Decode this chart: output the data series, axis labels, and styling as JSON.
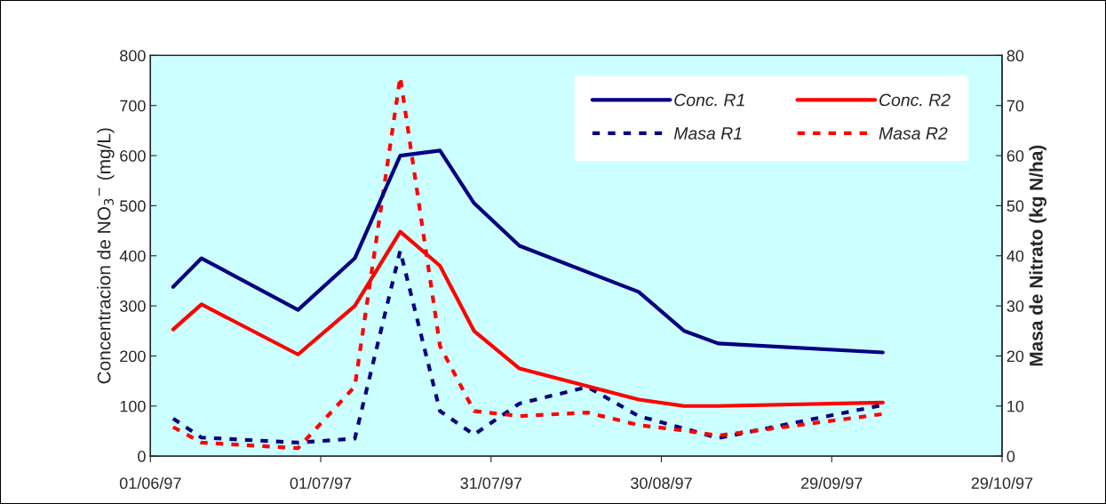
{
  "chart_data": {
    "type": "line",
    "xlabel": null,
    "ylabel": "Concentracion de NO$_{3}$$^{−}$ (mg/L)",
    "y2label": "Masa de Nitrato (kg N/ha)",
    "x": [
      "1997-06-05",
      "1997-06-10",
      "1997-06-27",
      "1997-07-07",
      "1997-07-15",
      "1997-07-22",
      "1997-07-28",
      "1997-08-05",
      "1997-08-17",
      "1997-08-26",
      "1997-09-03",
      "1997-09-09",
      "1997-10-08"
    ],
    "series": [
      {
        "name": "Conc. R1",
        "color": "#000080",
        "line_style": "solid",
        "values": [
          338,
          395,
          292,
          395,
          600,
          610,
          505,
          420,
          null,
          328,
          250,
          225,
          207
        ]
      },
      {
        "name": "Conc. R2",
        "color": "#ff0000",
        "line_style": "solid",
        "values": [
          253,
          303,
          203,
          300,
          448,
          380,
          250,
          175,
          null,
          113,
          100,
          100,
          107
        ]
      },
      {
        "name": "Masa R1",
        "color": "#000080",
        "line_style": "dashed",
        "axis": "y2",
        "values": [
          7.5,
          3.7,
          2.7,
          3.5,
          41,
          9,
          4.3,
          10.5,
          13.8,
          8,
          5.5,
          3.6,
          10.2
        ]
      },
      {
        "name": "Masa R2",
        "color": "#ff0000",
        "line_style": "dashed",
        "axis": "y2",
        "values": [
          5.8,
          2.7,
          1.6,
          13.9,
          75.7,
          22,
          9,
          8,
          8.7,
          6.2,
          5.1,
          4.1,
          8.4
        ]
      }
    ],
    "xlim": [
      "1997-06-01",
      "1997-10-29"
    ],
    "xticks": [
      {
        "value": "1997-06-01",
        "label": "01/06/97"
      },
      {
        "value": "1997-07-01",
        "label": "01/07/97"
      },
      {
        "value": "1997-07-31",
        "label": "31/07/97"
      },
      {
        "value": "1997-08-30",
        "label": "30/08/97"
      },
      {
        "value": "1997-09-29",
        "label": "29/09/97"
      },
      {
        "value": "1997-10-29",
        "label": "29/10/97"
      }
    ],
    "ylim": [
      0,
      800
    ],
    "yticks": [
      0,
      100,
      200,
      300,
      400,
      500,
      600,
      700,
      800
    ],
    "y2lim": [
      0,
      80
    ],
    "y2ticks": [
      0,
      10,
      20,
      30,
      40,
      50,
      60,
      70,
      80
    ],
    "legend": "top right",
    "grid": false,
    "marker": "none"
  }
}
